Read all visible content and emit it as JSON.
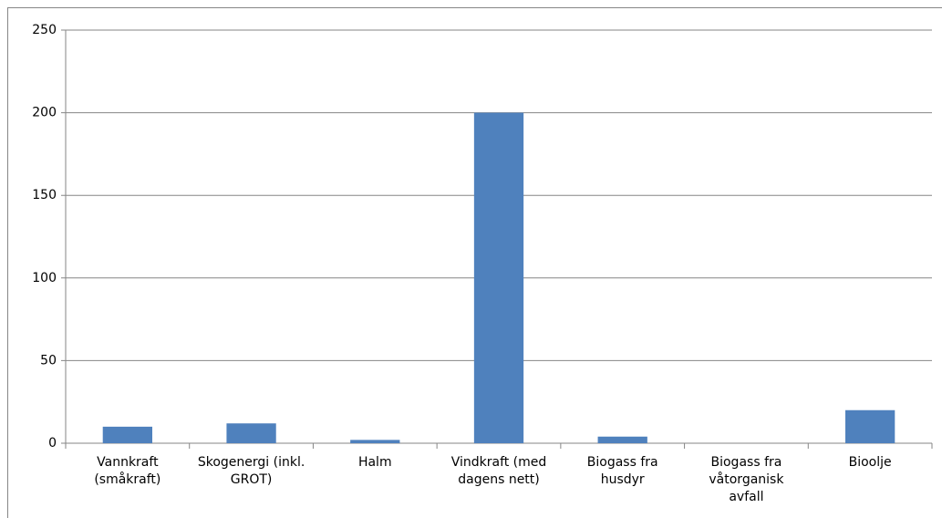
{
  "chart_data": {
    "type": "bar",
    "categories": [
      "Vannkraft (småkraft)",
      "Skogenergi (inkl. GROT)",
      "Halm",
      "Vindkraft (med dagens nett)",
      "Biogass fra husdyr",
      "Biogass fra våtorganisk avfall",
      "Bioolje"
    ],
    "values": [
      10,
      12,
      2,
      200,
      4,
      0,
      20
    ],
    "color": "#4f81bd",
    "ylim": [
      0,
      250
    ],
    "yticks": [
      0,
      50,
      100,
      150,
      200,
      250
    ],
    "grid": true
  }
}
